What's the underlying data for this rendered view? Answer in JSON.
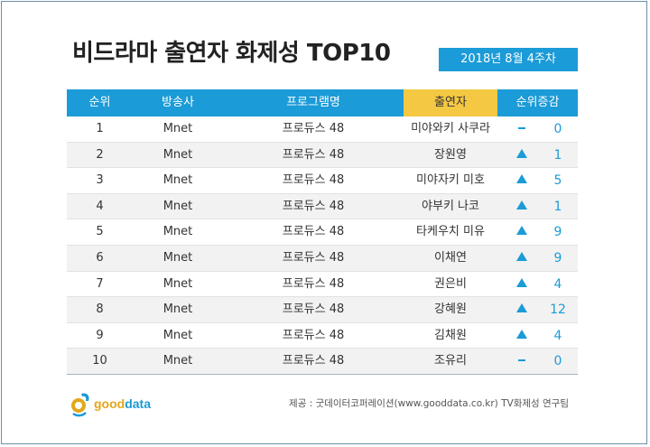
{
  "title": "비드라마 출연자 화제성 TOP10",
  "week": "2018년  8월 4주차",
  "columns": [
    "순위",
    "방송사",
    "프로그램명",
    "출연자",
    "순위증감"
  ],
  "rows": [
    {
      "rank": "1",
      "channel": "Mnet",
      "program": "프로듀스 48",
      "performer": "미야와키 사쿠라",
      "trend": "flat",
      "change": "0"
    },
    {
      "rank": "2",
      "channel": "Mnet",
      "program": "프로듀스 48",
      "performer": "장원영",
      "trend": "up",
      "change": "1"
    },
    {
      "rank": "3",
      "channel": "Mnet",
      "program": "프로듀스 48",
      "performer": "미야자키 미호",
      "trend": "up",
      "change": "5"
    },
    {
      "rank": "4",
      "channel": "Mnet",
      "program": "프로듀스 48",
      "performer": "야부키 나코",
      "trend": "up",
      "change": "1"
    },
    {
      "rank": "5",
      "channel": "Mnet",
      "program": "프로듀스 48",
      "performer": "타케우치 미유",
      "trend": "up",
      "change": "9"
    },
    {
      "rank": "6",
      "channel": "Mnet",
      "program": "프로듀스 48",
      "performer": "이채연",
      "trend": "up",
      "change": "9"
    },
    {
      "rank": "7",
      "channel": "Mnet",
      "program": "프로듀스 48",
      "performer": "권은비",
      "trend": "up",
      "change": "4"
    },
    {
      "rank": "8",
      "channel": "Mnet",
      "program": "프로듀스 48",
      "performer": "강혜원",
      "trend": "up",
      "change": "12"
    },
    {
      "rank": "9",
      "channel": "Mnet",
      "program": "프로듀스 48",
      "performer": "김채원",
      "trend": "up",
      "change": "4"
    },
    {
      "rank": "10",
      "channel": "Mnet",
      "program": "프로듀스 48",
      "performer": "조유리",
      "trend": "flat",
      "change": "0"
    }
  ],
  "logo": {
    "part1": "good",
    "part2": "data"
  },
  "source": "제공 : 굿데이터코퍼레이션(www.gooddata.co.kr) TV화제성 연구팀",
  "colors": {
    "accent": "#1b9bd7",
    "highlight": "#f4c842",
    "logo_gold": "#e2a81c"
  }
}
